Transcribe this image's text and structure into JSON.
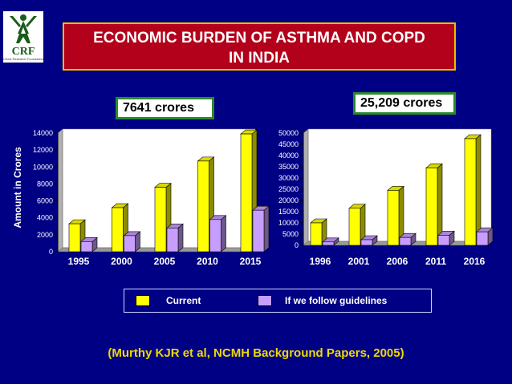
{
  "logo": {
    "text": "CRF",
    "icon": "crf-logo"
  },
  "title": "ECONOMIC BURDEN OF ASTHMA AND COPD IN INDIA",
  "title_lines": [
    "ECONOMIC BURDEN OF ASTHMA AND COPD",
    "IN INDIA"
  ],
  "callout_left": "7641 crores",
  "callout_right": "25,209 crores",
  "legend": {
    "current": "Current",
    "guidelines": "If we follow guidelines"
  },
  "citation": "(Murthy KJR et al, NCMH Background Papers, 2005)",
  "colors": {
    "background": "#000084",
    "title_box": "#b3001b",
    "current": "#ffff00",
    "guidelines": "#c79eff"
  },
  "chart_data": [
    {
      "type": "bar",
      "categories": [
        "1995",
        "2000",
        "2005",
        "2010",
        "2015"
      ],
      "series": [
        {
          "name": "Current",
          "values": [
            3300,
            5200,
            7600,
            10700,
            13900
          ]
        },
        {
          "name": "If we follow guidelines",
          "values": [
            1200,
            1900,
            2800,
            3800,
            4900
          ]
        }
      ],
      "ylabel": "Amount in Crores",
      "ylim": [
        0,
        14000
      ],
      "yticks": [
        0,
        2000,
        4000,
        6000,
        8000,
        10000,
        12000,
        14000
      ],
      "grid": false,
      "legend": "bottom"
    },
    {
      "type": "bar",
      "categories": [
        "1996",
        "2001",
        "2006",
        "2011",
        "2016"
      ],
      "series": [
        {
          "name": "Current",
          "values": [
            10000,
            16500,
            24500,
            34500,
            47500
          ]
        },
        {
          "name": "If we follow guidelines",
          "values": [
            1500,
            2500,
            3500,
            4500,
            6000
          ]
        }
      ],
      "ylim": [
        0,
        50000
      ],
      "yticks": [
        0,
        5000,
        10000,
        15000,
        20000,
        25000,
        30000,
        35000,
        40000,
        45000,
        50000
      ],
      "grid": false,
      "legend": "bottom"
    }
  ]
}
